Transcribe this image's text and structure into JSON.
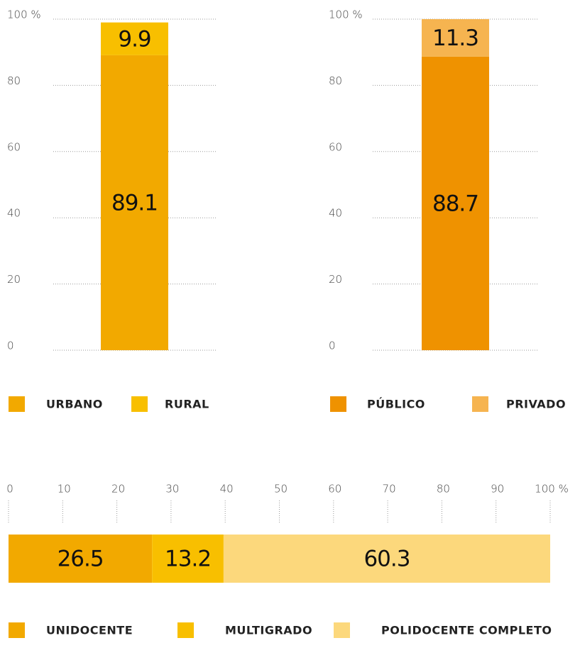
{
  "chart_data": [
    {
      "type": "bar",
      "orientation": "vertical",
      "categories": [
        null
      ],
      "ylim": [
        0,
        100
      ],
      "yticks": [
        0,
        20,
        40,
        60,
        80,
        {
          "value": 100,
          "label": "100 %"
        }
      ],
      "grid": true,
      "series": [
        {
          "name": "URBANO",
          "color": "#f2a900",
          "values": [
            89.1
          ]
        },
        {
          "name": "RURAL",
          "color": "#f8bf00",
          "values": [
            9.9
          ]
        }
      ]
    },
    {
      "type": "bar",
      "orientation": "vertical",
      "categories": [
        null
      ],
      "ylim": [
        0,
        100
      ],
      "yticks": [
        0,
        20,
        40,
        60,
        80,
        {
          "value": 100,
          "label": "100 %"
        }
      ],
      "grid": true,
      "series": [
        {
          "name": "PÚBLICO",
          "color": "#ef9200",
          "values": [
            88.7
          ]
        },
        {
          "name": "PRIVADO",
          "color": "#f6b450",
          "values": [
            11.3
          ]
        }
      ]
    },
    {
      "type": "bar",
      "orientation": "horizontal",
      "categories": [
        null
      ],
      "xlim": [
        0,
        100
      ],
      "xticks": [
        0,
        10,
        20,
        30,
        40,
        50,
        60,
        70,
        80,
        90,
        {
          "value": 100,
          "label": "100 %"
        }
      ],
      "grid": true,
      "series": [
        {
          "name": "UNIDOCENTE",
          "color": "#f2a900",
          "values": [
            26.5
          ]
        },
        {
          "name": "MULTIGRADO",
          "color": "#f8bf00",
          "values": [
            13.2
          ]
        },
        {
          "name": "POLIDOCENTE COMPLETO",
          "color": "#fcd87c",
          "values": [
            60.3
          ]
        }
      ]
    }
  ]
}
